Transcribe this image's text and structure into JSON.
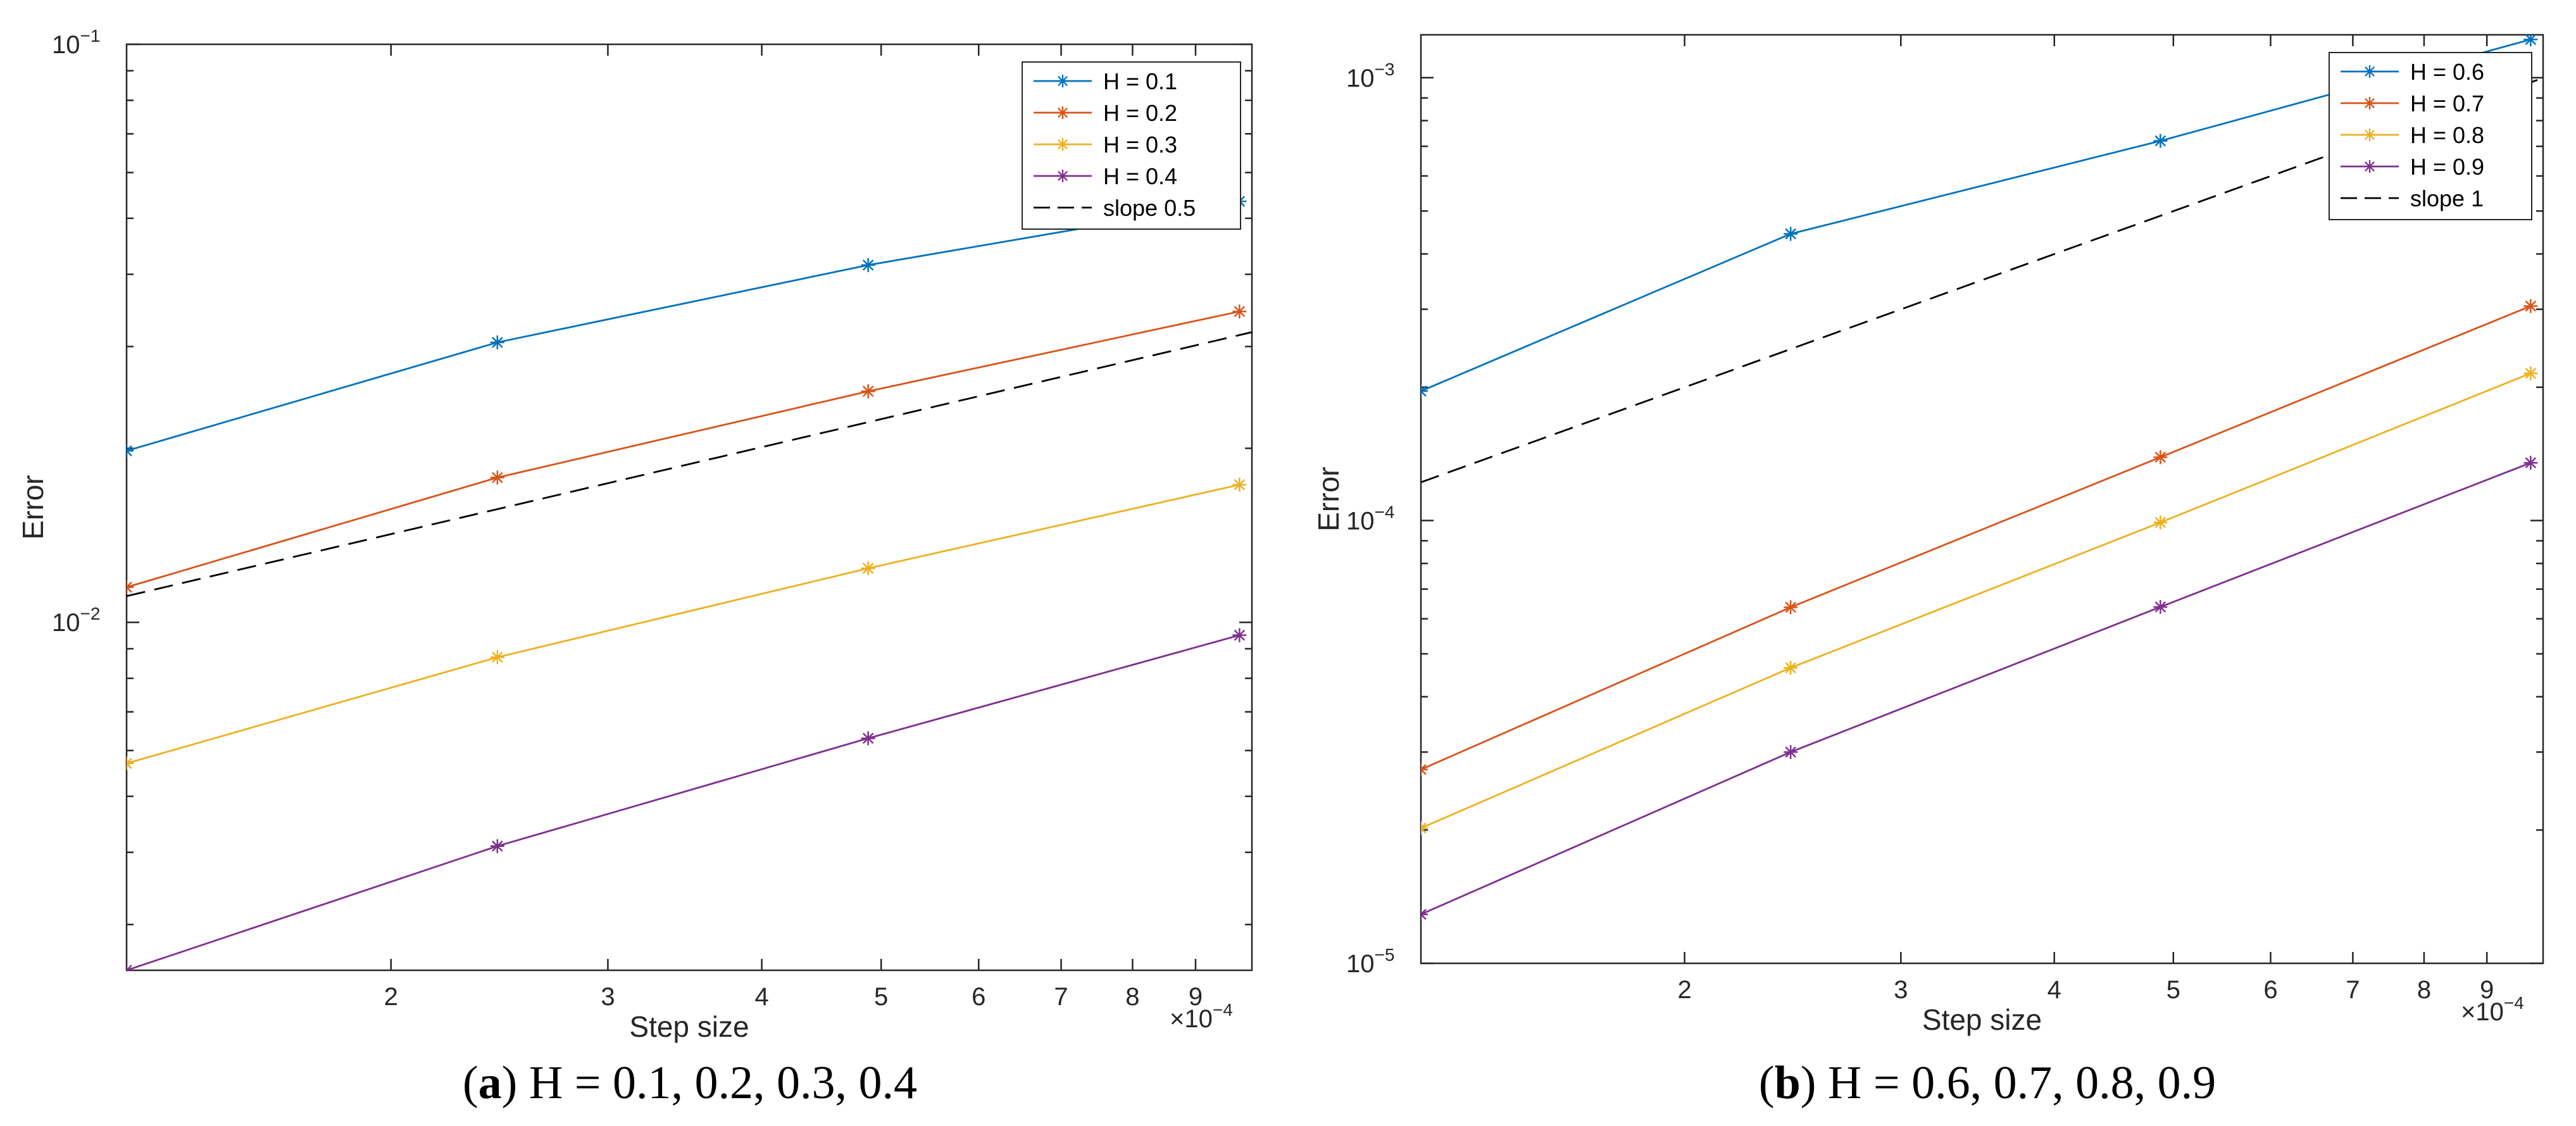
{
  "chart_data": [
    {
      "type": "line",
      "panel": "a",
      "xscale": "log",
      "yscale": "log",
      "xlabel": "Step size",
      "ylabel": "Error",
      "x_multiplier": "×10",
      "x_multiplier_exponent": "−4",
      "xlim": [
        1.22,
        10
      ],
      "ylim": [
        0.0025,
        0.1
      ],
      "x_ticks": [
        2,
        3,
        4,
        5,
        6,
        7,
        8,
        9
      ],
      "x_tick_labels": [
        "2",
        "3",
        "4",
        "5",
        "6",
        "7",
        "8",
        "9"
      ],
      "y_ticks": [
        0.01,
        0.1
      ],
      "y_tick_labels": [
        {
          "base": "10",
          "exp": "−2"
        },
        {
          "base": "10",
          "exp": "−1"
        }
      ],
      "x": [
        1.22,
        2.44,
        4.88,
        9.77
      ],
      "legend_position": "top-right",
      "series": [
        {
          "name": "H = 0.1",
          "color": "#0072BD",
          "marker": "*",
          "values": [
            0.0198,
            0.0305,
            0.0415,
            0.0535
          ]
        },
        {
          "name": "H = 0.2",
          "color": "#D95319",
          "marker": "*",
          "values": [
            0.0115,
            0.0178,
            0.0251,
            0.0345
          ]
        },
        {
          "name": "H = 0.3",
          "color": "#EDB120",
          "marker": "*",
          "values": [
            0.0057,
            0.0087,
            0.0124,
            0.0173
          ]
        },
        {
          "name": "H = 0.4",
          "color": "#7E2F8E",
          "marker": "*",
          "values": [
            0.0025,
            0.0041,
            0.0063,
            0.0095
          ]
        },
        {
          "name": "slope 0.5",
          "color": "#000000",
          "dashed": true,
          "values": [
            0.0111,
            0.0157,
            0.0222,
            0.0314
          ]
        }
      ],
      "caption_letter": "(a)",
      "caption_text": " H = 0.1, 0.2, 0.3, 0.4"
    },
    {
      "type": "line",
      "panel": "b",
      "xscale": "log",
      "yscale": "log",
      "xlabel": "Step size",
      "ylabel": "Error",
      "x_multiplier": "×10",
      "x_multiplier_exponent": "−4",
      "xlim": [
        1.22,
        10
      ],
      "ylim": [
        1e-05,
        0.00125
      ],
      "x_ticks": [
        2,
        3,
        4,
        5,
        6,
        7,
        8,
        9
      ],
      "x_tick_labels": [
        "2",
        "3",
        "4",
        "5",
        "6",
        "7",
        "8",
        "9"
      ],
      "y_ticks": [
        1e-05,
        0.0001,
        0.001
      ],
      "y_tick_labels": [
        {
          "base": "10",
          "exp": "−5"
        },
        {
          "base": "10",
          "exp": "−4"
        },
        {
          "base": "10",
          "exp": "−3"
        }
      ],
      "x": [
        1.22,
        2.44,
        4.88,
        9.77
      ],
      "legend_position": "top-right",
      "series": [
        {
          "name": "H = 0.6",
          "color": "#0072BD",
          "marker": "*",
          "values": [
            0.000196,
            0.000444,
            0.00072,
            0.00122
          ]
        },
        {
          "name": "H = 0.7",
          "color": "#D95319",
          "marker": "*",
          "values": [
            2.74e-05,
            6.37e-05,
            0.000139,
            0.000305
          ]
        },
        {
          "name": "H = 0.8",
          "color": "#EDB120",
          "marker": "*",
          "values": [
            2.02e-05,
            4.65e-05,
            9.9e-05,
            0.000215
          ]
        },
        {
          "name": "H = 0.9",
          "color": "#7E2F8E",
          "marker": "*",
          "values": [
            1.29e-05,
            3e-05,
            6.38e-05,
            0.000135
          ]
        },
        {
          "name": "slope 1",
          "color": "#000000",
          "dashed": true,
          "values": [
            0.000122,
            0.000244,
            0.000488,
            0.000976
          ]
        }
      ],
      "caption_letter": "(b)",
      "caption_text": " H = 0.6, 0.7, 0.8, 0.9"
    }
  ]
}
